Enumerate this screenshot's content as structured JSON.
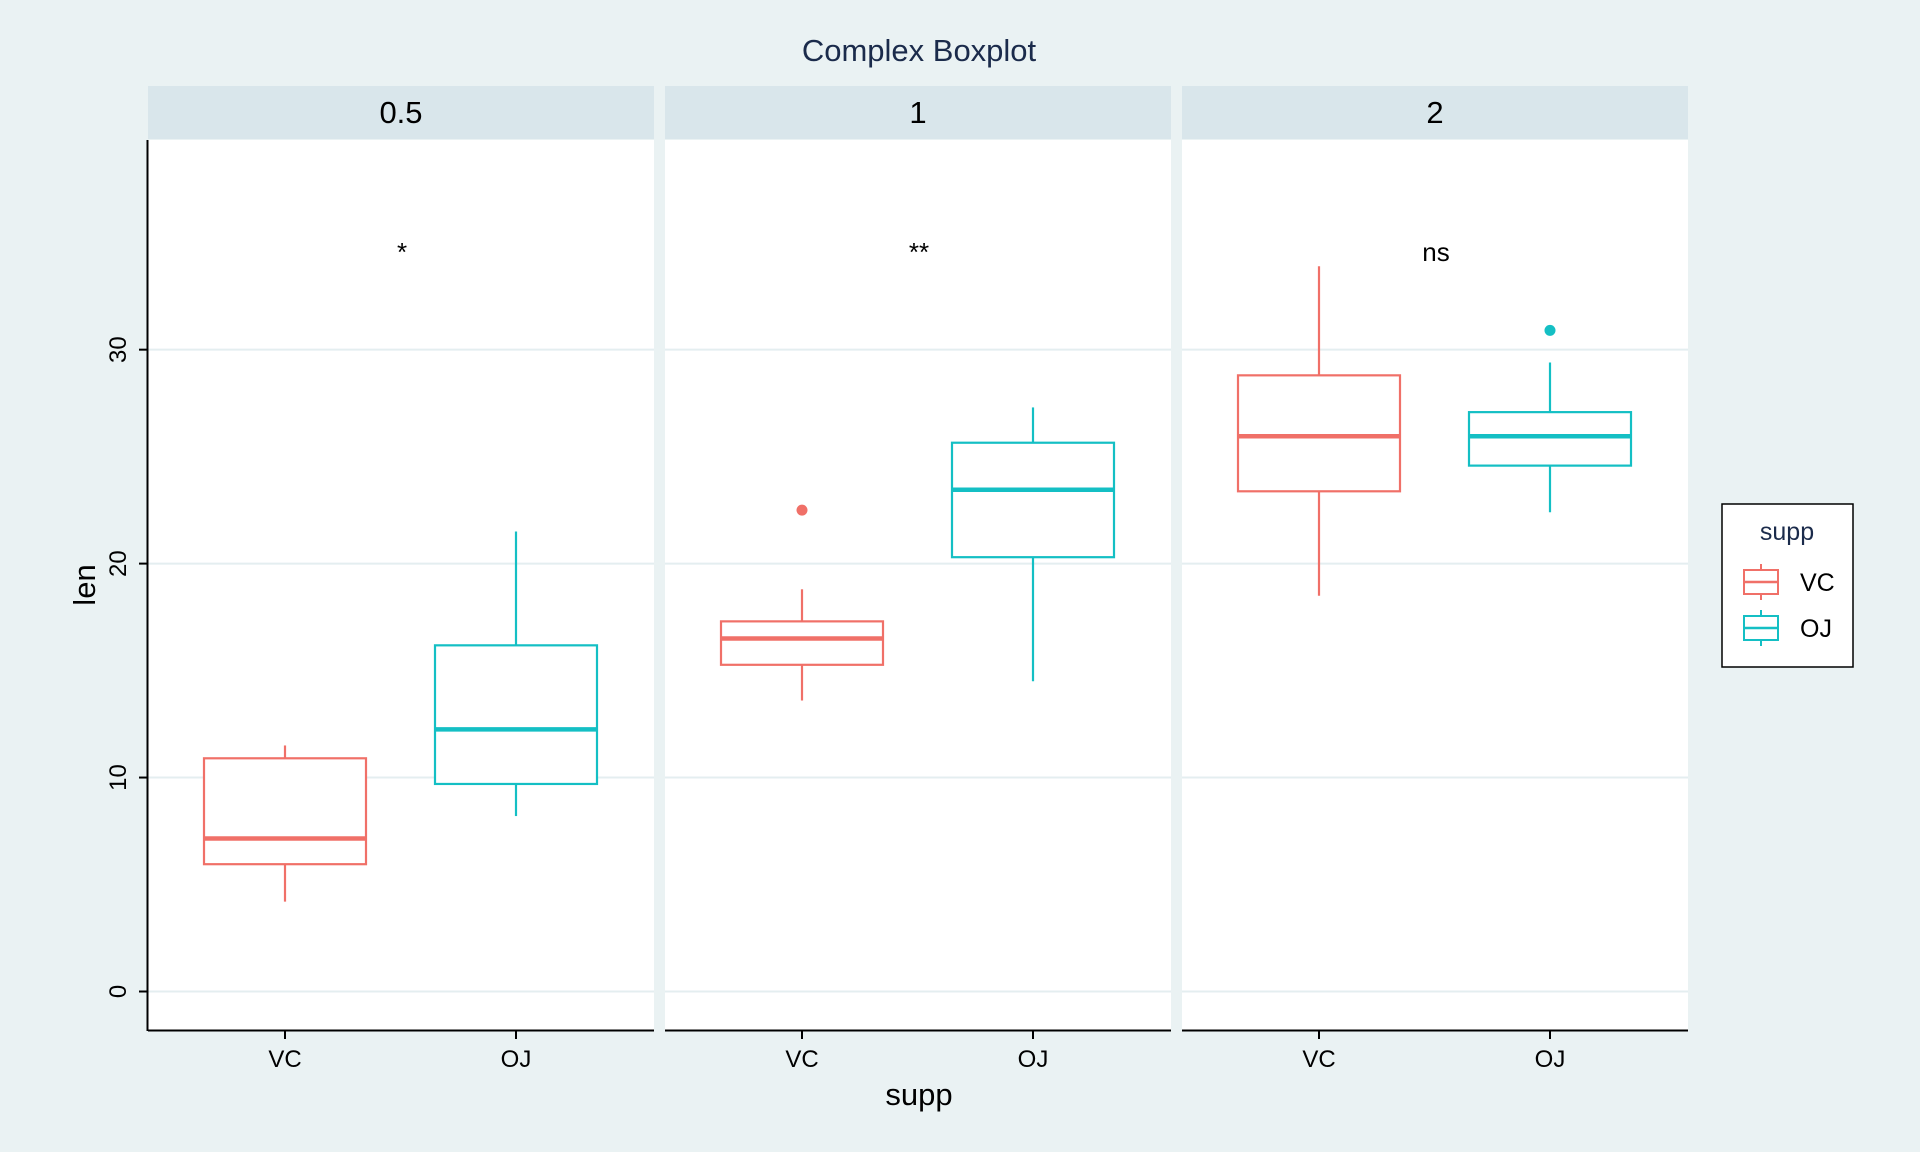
{
  "chart_data": {
    "type": "boxplot",
    "title": "Complex Boxplot",
    "xlabel": "supp",
    "ylabel": "len",
    "ylim": [
      -1.8,
      39.8
    ],
    "yticks": [
      0,
      10,
      20,
      30
    ],
    "grid": true,
    "legend": {
      "title": "supp",
      "position": "right",
      "entries": [
        {
          "name": "VC",
          "color": "#f07068"
        },
        {
          "name": "OJ",
          "color": "#14bfc4"
        }
      ]
    },
    "categories": [
      "VC",
      "OJ"
    ],
    "colors": {
      "VC": "#f07068",
      "OJ": "#14bfc4"
    },
    "panels": [
      {
        "label": "0.5",
        "significance": "*",
        "sig_y": 34.8,
        "boxes": [
          {
            "group": "VC",
            "whisker_low": 4.2,
            "q1": 5.95,
            "median": 7.15,
            "q3": 10.9,
            "whisker_high": 11.5,
            "outliers": []
          },
          {
            "group": "OJ",
            "whisker_low": 8.2,
            "q1": 9.7,
            "median": 12.25,
            "q3": 16.18,
            "whisker_high": 21.5,
            "outliers": []
          }
        ]
      },
      {
        "label": "1",
        "significance": "**",
        "sig_y": 34.8,
        "boxes": [
          {
            "group": "VC",
            "whisker_low": 13.6,
            "q1": 15.27,
            "median": 16.5,
            "q3": 17.3,
            "whisker_high": 18.8,
            "outliers": [
              22.5
            ]
          },
          {
            "group": "OJ",
            "whisker_low": 14.5,
            "q1": 20.3,
            "median": 23.45,
            "q3": 25.65,
            "whisker_high": 27.3,
            "outliers": []
          }
        ]
      },
      {
        "label": "2",
        "significance": "ns",
        "sig_y": 34.8,
        "boxes": [
          {
            "group": "VC",
            "whisker_low": 18.5,
            "q1": 23.38,
            "median": 25.95,
            "q3": 28.8,
            "whisker_high": 33.9,
            "outliers": []
          },
          {
            "group": "OJ",
            "whisker_low": 22.4,
            "q1": 24.58,
            "median": 25.95,
            "q3": 27.08,
            "whisker_high": 29.4,
            "outliers": [
              30.9
            ]
          }
        ]
      }
    ]
  }
}
